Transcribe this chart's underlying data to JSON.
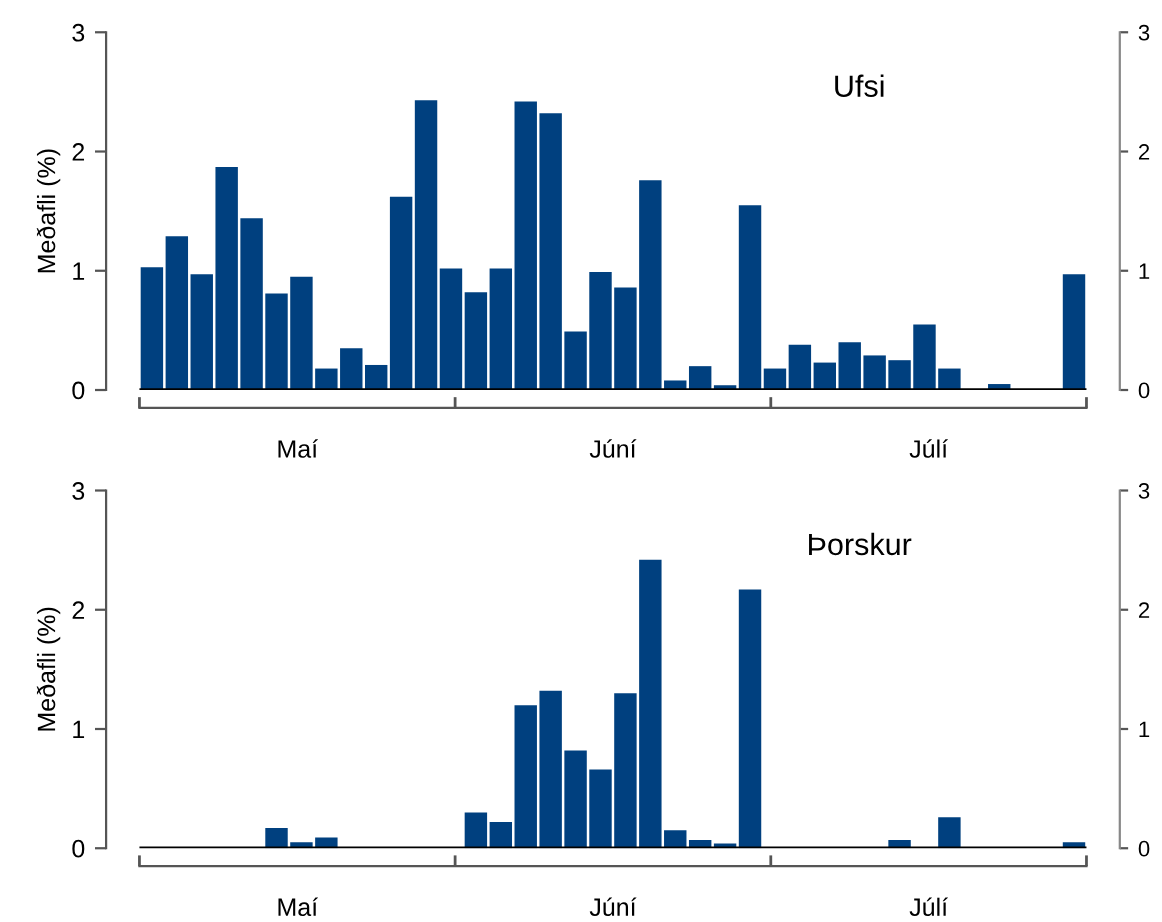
{
  "chart_data": [
    {
      "type": "bar",
      "title": "Ufsi",
      "ylabel": "Meðafli (%)",
      "color": "#00407f",
      "categories": [
        null,
        null,
        null,
        null,
        null,
        null,
        null,
        null,
        null,
        null,
        null,
        null,
        null,
        null,
        null,
        null,
        null,
        null,
        null,
        null,
        null,
        null,
        null,
        null,
        null,
        null,
        null,
        null,
        null,
        null,
        null,
        null,
        null,
        null,
        null,
        null,
        null,
        null
      ],
      "values": [
        1.03,
        1.29,
        0.97,
        1.87,
        1.44,
        0.81,
        0.95,
        0.18,
        0.35,
        0.21,
        1.62,
        2.43,
        1.02,
        0.82,
        1.02,
        2.42,
        2.32,
        0.49,
        0.99,
        0.86,
        1.76,
        0.08,
        0.2,
        0.04,
        1.55,
        0.18,
        0.38,
        0.23,
        0.4,
        0.29,
        0.25,
        0.55,
        0.18,
        0,
        0.05,
        0,
        0,
        0.97
      ],
      "annotations": [
        "Maí",
        "Júní",
        "Júlí"
      ],
      "ylim": [
        0,
        3
      ],
      "yticks": [
        0,
        1,
        2,
        3
      ],
      "y2lim": [
        0,
        3
      ],
      "y2ticks": [
        0,
        1,
        2,
        3
      ]
    },
    {
      "type": "bar",
      "title": "Þorskur",
      "ylabel": "Meðafli (%)",
      "color": "#00407f",
      "categories": [
        null,
        null,
        null,
        null,
        null,
        null,
        null,
        null,
        null,
        null,
        null,
        null,
        null,
        null,
        null,
        null,
        null,
        null,
        null,
        null,
        null,
        null,
        null,
        null,
        null,
        null,
        null,
        null,
        null,
        null,
        null,
        null,
        null,
        null,
        null,
        null,
        null,
        null
      ],
      "values": [
        0,
        0,
        0,
        0,
        0,
        0.17,
        0.05,
        0.09,
        0,
        0,
        0,
        0,
        0,
        0.3,
        0.22,
        1.2,
        1.32,
        0.82,
        0.66,
        1.3,
        2.42,
        0.15,
        0.07,
        0.04,
        2.17,
        0,
        0,
        0,
        0,
        0,
        0.07,
        0,
        0.26,
        0,
        0,
        0,
        0,
        0.05
      ],
      "annotations": [
        "Maí",
        "Júní",
        "Júlí"
      ],
      "ylim": [
        0,
        3
      ],
      "yticks": [
        0,
        1,
        2,
        3
      ],
      "y2lim": [
        0,
        3
      ],
      "y2ticks": [
        0,
        1,
        2,
        3
      ]
    }
  ]
}
